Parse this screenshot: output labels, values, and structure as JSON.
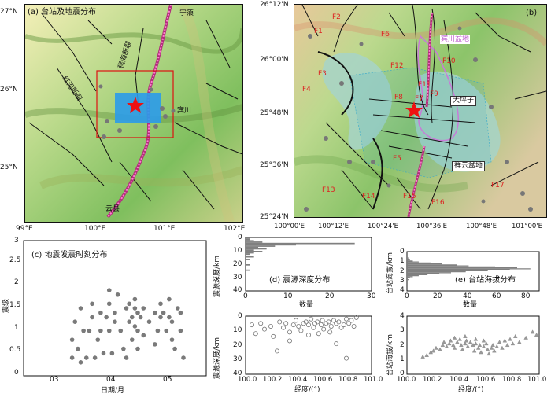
{
  "panel_a": {
    "label": "(a) 台站及地震分布",
    "lat_ticks": [
      "27°N",
      "26°N",
      "25°N"
    ],
    "lon_ticks": [
      "99°E",
      "100°E",
      "101°E",
      "102°E"
    ],
    "places": {
      "ningliang": "宁蒗",
      "binchuan": "宾川",
      "yunxian": "云县"
    },
    "faults": {
      "chenghai": "程海断裂",
      "honghe": "红河断裂"
    }
  },
  "panel_b": {
    "label": "(b)",
    "lat_ticks": [
      "26°12'N",
      "26°00'N",
      "25°48'N",
      "25°36'N",
      "25°24'N"
    ],
    "lon_ticks": [
      "100°00'E",
      "100°12'E",
      "100°24'E",
      "100°36'E",
      "100°48'E",
      "101°00'E"
    ],
    "faults": [
      "F1",
      "F2",
      "F3",
      "F4",
      "F5",
      "F6",
      "F7",
      "F8",
      "F9",
      "F10",
      "F11",
      "F12",
      "F13",
      "F14",
      "F15",
      "F16",
      "F17"
    ],
    "places": {
      "binchuan_basin": "宾川盆地",
      "dapingzi": "大坪子",
      "xiangyun_basin": "祥云盆地"
    }
  },
  "panel_c": {
    "label": "(c) 地震发震时刻分布",
    "ylabel": "震级",
    "xlabel": "日期/月",
    "x_ticks": [
      "03",
      "04",
      "05"
    ],
    "y_ticks": [
      "0",
      "0.5",
      "1",
      "1.5",
      "2",
      "2.5",
      "3"
    ]
  },
  "panel_d": {
    "label": "(d) 震源深度分布",
    "ylabel": "震源深度/km",
    "xlabel": "数量",
    "x_ticks": [
      "0",
      "10",
      "20",
      "30"
    ],
    "y_ticks": [
      "0",
      "10",
      "20",
      "30",
      "40"
    ]
  },
  "panel_e": {
    "label": "(e) 台站海拔分布",
    "ylabel": "台站海拔/km",
    "xlabel": "数量",
    "x_ticks": [
      "0",
      "20",
      "40",
      "60",
      "80"
    ],
    "y_ticks": [
      "0",
      "1",
      "2",
      "3",
      "4"
    ]
  },
  "panel_f": {
    "ylabel": "震源深度/km",
    "xlabel": "经度/(°)",
    "x_ticks": [
      "100.0",
      "100.2",
      "100.4",
      "100.6",
      "100.8",
      "101.0"
    ],
    "y_ticks": [
      "0",
      "10",
      "20",
      "30",
      "40"
    ]
  },
  "panel_g": {
    "ylabel": "台站海拔/km",
    "xlabel": "经度/(°)",
    "x_ticks": [
      "100.0",
      "100.2",
      "100.4",
      "100.6",
      "100.8",
      "101.0"
    ],
    "y_ticks": [
      "0",
      "1",
      "2",
      "3",
      "4"
    ]
  },
  "chart_data": [
    {
      "type": "scatter",
      "panel": "c",
      "title": "(c) 地震发震时刻分布",
      "xlabel": "日期/月",
      "ylabel": "震级",
      "x_ticks": [
        "03",
        "04",
        "05"
      ],
      "ylim": [
        0,
        3
      ],
      "points": [
        [
          3.35,
          0.4
        ],
        [
          3.35,
          0.8
        ],
        [
          3.4,
          1.2
        ],
        [
          3.45,
          0.6
        ],
        [
          3.5,
          1.5
        ],
        [
          3.5,
          0.3
        ],
        [
          3.55,
          1.0
        ],
        [
          3.6,
          0.4
        ],
        [
          3.65,
          1.0
        ],
        [
          3.7,
          1.6
        ],
        [
          3.7,
          1.3
        ],
        [
          3.75,
          0.4
        ],
        [
          3.8,
          0.8
        ],
        [
          3.85,
          1.4
        ],
        [
          3.85,
          1.0
        ],
        [
          3.9,
          0.5
        ],
        [
          3.95,
          1.3
        ],
        [
          4.0,
          1.9
        ],
        [
          4.0,
          1.6
        ],
        [
          4.0,
          1.0
        ],
        [
          4.05,
          0.5
        ],
        [
          4.1,
          1.4
        ],
        [
          4.1,
          1.2
        ],
        [
          4.15,
          1.8
        ],
        [
          4.2,
          1.0
        ],
        [
          4.25,
          0.6
        ],
        [
          4.3,
          1.5
        ],
        [
          4.3,
          0.4
        ],
        [
          4.35,
          1.6
        ],
        [
          4.35,
          1.2
        ],
        [
          4.4,
          0.8
        ],
        [
          4.4,
          1.3
        ],
        [
          4.45,
          1.7
        ],
        [
          4.45,
          1.5
        ],
        [
          4.45,
          1.1
        ],
        [
          4.5,
          1.4
        ],
        [
          4.5,
          1.0
        ],
        [
          4.5,
          0.6
        ],
        [
          4.55,
          1.3
        ],
        [
          4.6,
          1.5
        ],
        [
          4.6,
          0.9
        ],
        [
          4.7,
          1.2
        ],
        [
          4.8,
          1.4
        ],
        [
          4.8,
          0.7
        ],
        [
          4.85,
          1.0
        ],
        [
          4.9,
          1.6
        ],
        [
          4.9,
          1.3
        ],
        [
          4.95,
          1.4
        ],
        [
          5.0,
          1.0
        ],
        [
          5.05,
          1.7
        ],
        [
          5.05,
          1.3
        ],
        [
          5.1,
          1.2
        ],
        [
          5.1,
          0.8
        ],
        [
          5.15,
          0.6
        ],
        [
          5.2,
          1.5
        ],
        [
          5.25,
          1.4
        ],
        [
          5.25,
          1.0
        ],
        [
          5.3,
          0.4
        ]
      ]
    },
    {
      "type": "bar",
      "panel": "d",
      "title": "(d) 震源深度分布",
      "xlabel": "数量",
      "ylabel": "震源深度/km",
      "orientation": "horizontal",
      "xlim": [
        0,
        30
      ],
      "ylim": [
        40,
        0
      ],
      "bins": [
        [
          0,
          1
        ],
        [
          1,
          1
        ],
        [
          2,
          2
        ],
        [
          3,
          4
        ],
        [
          4,
          26
        ],
        [
          5,
          12
        ],
        [
          6,
          7
        ],
        [
          7,
          3
        ],
        [
          8,
          5
        ],
        [
          9,
          2
        ],
        [
          10,
          4
        ],
        [
          11,
          2
        ],
        [
          12,
          1
        ],
        [
          14,
          2
        ],
        [
          16,
          1
        ],
        [
          20,
          1
        ],
        [
          24,
          1
        ]
      ]
    },
    {
      "type": "bar",
      "panel": "e",
      "title": "(e) 台站海拔分布",
      "xlabel": "数量",
      "ylabel": "台站海拔/km",
      "orientation": "horizontal",
      "xlim": [
        0,
        90
      ],
      "ylim": [
        4,
        0
      ],
      "bins": [
        [
          0.6,
          1
        ],
        [
          0.8,
          2
        ],
        [
          0.9,
          4
        ],
        [
          1.0,
          8
        ],
        [
          1.1,
          16
        ],
        [
          1.2,
          24
        ],
        [
          1.3,
          34
        ],
        [
          1.4,
          42
        ],
        [
          1.5,
          60
        ],
        [
          1.6,
          75
        ],
        [
          1.7,
          84
        ],
        [
          1.8,
          70
        ],
        [
          1.9,
          55
        ],
        [
          2.0,
          40
        ],
        [
          2.1,
          30
        ],
        [
          2.2,
          22
        ],
        [
          2.3,
          14
        ],
        [
          2.4,
          8
        ],
        [
          2.5,
          4
        ],
        [
          2.6,
          2
        ],
        [
          2.8,
          1
        ]
      ]
    },
    {
      "type": "scatter",
      "panel": "f",
      "xlabel": "经度/(°)",
      "ylabel": "震源深度/km",
      "xlim": [
        100.0,
        101.0
      ],
      "ylim": [
        40,
        0
      ],
      "points": [
        [
          100.05,
          6
        ],
        [
          100.08,
          12
        ],
        [
          100.12,
          5
        ],
        [
          100.15,
          9
        ],
        [
          100.2,
          7
        ],
        [
          100.22,
          14
        ],
        [
          100.27,
          4
        ],
        [
          100.3,
          8
        ],
        [
          100.32,
          5
        ],
        [
          100.35,
          11
        ],
        [
          100.38,
          6
        ],
        [
          100.4,
          3
        ],
        [
          100.42,
          7
        ],
        [
          100.44,
          10
        ],
        [
          100.46,
          5
        ],
        [
          100.48,
          4
        ],
        [
          100.5,
          6
        ],
        [
          100.52,
          2
        ],
        [
          100.54,
          8
        ],
        [
          100.55,
          5
        ],
        [
          100.57,
          4
        ],
        [
          100.58,
          12
        ],
        [
          100.6,
          6
        ],
        [
          100.61,
          3
        ],
        [
          100.62,
          9
        ],
        [
          100.64,
          5
        ],
        [
          100.66,
          4
        ],
        [
          100.67,
          11
        ],
        [
          100.68,
          7
        ],
        [
          100.7,
          3
        ],
        [
          100.72,
          5
        ],
        [
          100.74,
          4
        ],
        [
          100.76,
          8
        ],
        [
          100.78,
          6
        ],
        [
          100.8,
          2
        ],
        [
          100.82,
          5
        ],
        [
          100.84,
          3
        ],
        [
          100.86,
          7
        ],
        [
          100.88,
          1
        ],
        [
          100.72,
          19
        ],
        [
          100.5,
          13
        ],
        [
          100.35,
          17
        ],
        [
          100.8,
          29
        ],
        [
          100.25,
          24
        ]
      ]
    },
    {
      "type": "scatter",
      "panel": "g",
      "xlabel": "经度/(°)",
      "ylabel": "台站海拔/km",
      "xlim": [
        100.0,
        101.0
      ],
      "ylim": [
        0,
        4
      ],
      "points": [
        [
          100.12,
          1.2
        ],
        [
          100.15,
          1.3
        ],
        [
          100.18,
          1.5
        ],
        [
          100.2,
          1.6
        ],
        [
          100.22,
          1.8
        ],
        [
          100.25,
          1.7
        ],
        [
          100.27,
          2.0
        ],
        [
          100.28,
          2.2
        ],
        [
          100.3,
          1.9
        ],
        [
          100.32,
          2.1
        ],
        [
          100.33,
          2.3
        ],
        [
          100.35,
          2.0
        ],
        [
          100.36,
          1.8
        ],
        [
          100.38,
          2.2
        ],
        [
          100.4,
          2.4
        ],
        [
          100.41,
          2.0
        ],
        [
          100.42,
          1.7
        ],
        [
          100.44,
          2.1
        ],
        [
          100.45,
          2.3
        ],
        [
          100.46,
          1.9
        ],
        [
          100.48,
          2.2
        ],
        [
          100.5,
          2.0
        ],
        [
          100.51,
          1.6
        ],
        [
          100.52,
          2.1
        ],
        [
          100.54,
          1.8
        ],
        [
          100.55,
          2.0
        ],
        [
          100.56,
          1.5
        ],
        [
          100.58,
          1.9
        ],
        [
          100.6,
          2.1
        ],
        [
          100.61,
          1.7
        ],
        [
          100.62,
          1.4
        ],
        [
          100.64,
          1.8
        ],
        [
          100.65,
          2.0
        ],
        [
          100.66,
          1.6
        ],
        [
          100.68,
          1.9
        ],
        [
          100.7,
          2.2
        ],
        [
          100.72,
          1.8
        ],
        [
          100.74,
          2.3
        ],
        [
          100.76,
          2.0
        ],
        [
          100.78,
          2.4
        ],
        [
          100.8,
          2.1
        ],
        [
          100.82,
          2.6
        ],
        [
          100.85,
          2.2
        ],
        [
          100.9,
          2.5
        ],
        [
          100.95,
          2.9
        ],
        [
          100.98,
          2.7
        ],
        [
          100.36,
          2.5
        ],
        [
          100.44,
          2.6
        ],
        [
          100.52,
          2.4
        ],
        [
          100.58,
          2.3
        ]
      ]
    }
  ]
}
